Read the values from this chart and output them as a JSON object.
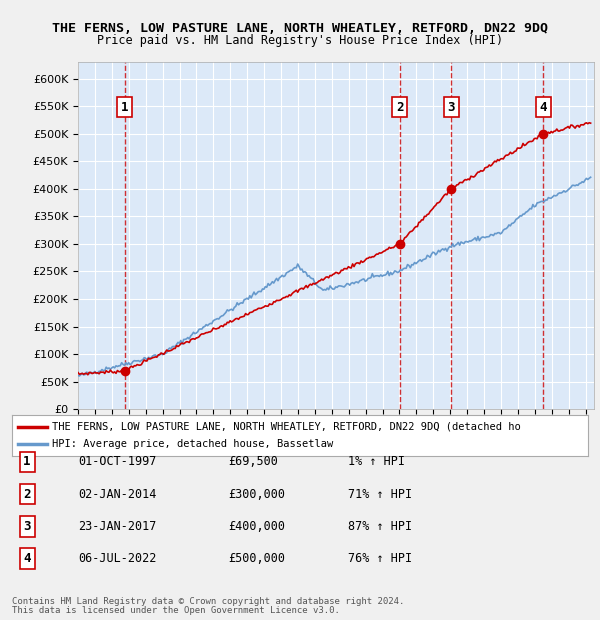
{
  "title": "THE FERNS, LOW PASTURE LANE, NORTH WHEATLEY, RETFORD, DN22 9DQ",
  "subtitle": "Price paid vs. HM Land Registry's House Price Index (HPI)",
  "ylabel": "",
  "xlim_start": 1995.0,
  "xlim_end": 2025.5,
  "ylim": [
    0,
    630000
  ],
  "yticks": [
    0,
    50000,
    100000,
    150000,
    200000,
    250000,
    300000,
    350000,
    400000,
    450000,
    500000,
    550000,
    600000
  ],
  "ytick_labels": [
    "£0",
    "£50K",
    "£100K",
    "£150K",
    "£200K",
    "£250K",
    "£300K",
    "£350K",
    "£400K",
    "£450K",
    "£500K",
    "£550K",
    "£600K"
  ],
  "background_color": "#dce9f8",
  "plot_bg_color": "#dce9f8",
  "grid_color": "#ffffff",
  "sale_color": "#cc0000",
  "hpi_color": "#6699cc",
  "sale_marker_color": "#cc0000",
  "dashed_line_color": "#cc0000",
  "transaction_label_bg": "#ffffff",
  "transaction_label_border": "#cc0000",
  "transactions": [
    {
      "num": 1,
      "year": 1997.75,
      "price": 69500,
      "date": "01-OCT-1997",
      "pct": "1%"
    },
    {
      "num": 2,
      "year": 2014.02,
      "price": 300000,
      "date": "02-JAN-2014",
      "pct": "71%"
    },
    {
      "num": 3,
      "year": 2017.06,
      "price": 400000,
      "date": "23-JAN-2017",
      "pct": "87%"
    },
    {
      "num": 4,
      "year": 2022.51,
      "price": 500000,
      "date": "06-JUL-2022",
      "pct": "76%"
    }
  ],
  "legend_sale_label": "THE FERNS, LOW PASTURE LANE, NORTH WHEATLEY, RETFORD, DN22 9DQ (detached ho",
  "legend_hpi_label": "HPI: Average price, detached house, Bassetlaw",
  "footer1": "Contains HM Land Registry data © Crown copyright and database right 2024.",
  "footer2": "This data is licensed under the Open Government Licence v3.0.",
  "table_rows": [
    [
      "1",
      "01-OCT-1997",
      "£69,500",
      "1% ↑ HPI"
    ],
    [
      "2",
      "02-JAN-2014",
      "£300,000",
      "71% ↑ HPI"
    ],
    [
      "3",
      "23-JAN-2017",
      "£400,000",
      "87% ↑ HPI"
    ],
    [
      "4",
      "06-JUL-2022",
      "£500,000",
      "76% ↑ HPI"
    ]
  ]
}
